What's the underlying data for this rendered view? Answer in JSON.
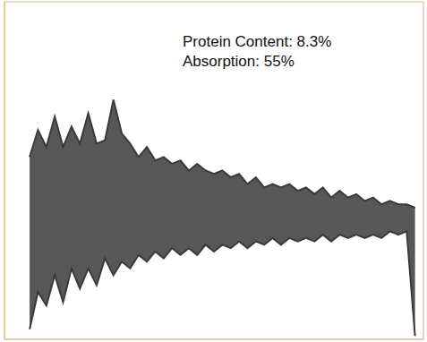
{
  "chart_data": {
    "type": "area",
    "annotations": [
      "Protein Content: 8.3%",
      "Absorption: 55%"
    ],
    "x": [
      0.6,
      0.8,
      1.0,
      1.2,
      1.4,
      1.6,
      1.8,
      2.0,
      2.2,
      2.4,
      2.6,
      2.8,
      3.0,
      3.2,
      3.4,
      3.6,
      3.8,
      4.0,
      4.2,
      4.4,
      4.6,
      4.8,
      5.0,
      5.2,
      5.4,
      5.6,
      5.8,
      6.0,
      6.2,
      6.4,
      6.6,
      6.8,
      7.0,
      7.2,
      7.4,
      7.6,
      7.8,
      8.0,
      8.2,
      8.4,
      8.6,
      8.8,
      9.0,
      9.2,
      9.4,
      9.6,
      9.8
    ],
    "series": [
      {
        "color": "#3a3a3a",
        "values": [
          54,
          62,
          57,
          66,
          57,
          63,
          58,
          67,
          58,
          59,
          71,
          61,
          58,
          54,
          57,
          53,
          54,
          52,
          53,
          50,
          52,
          50,
          49,
          50,
          48,
          49,
          46,
          48,
          45,
          46,
          45,
          46,
          44,
          45,
          43,
          45,
          42,
          44,
          42,
          43,
          41,
          42,
          40,
          41,
          40,
          40,
          39
        ]
      },
      {
        "color": "#3a3a3a",
        "values": [
          3,
          14,
          10,
          19,
          11,
          21,
          15,
          21,
          16,
          24,
          19,
          23,
          21,
          25,
          23,
          26,
          24,
          27,
          25,
          27,
          25,
          28,
          26,
          28,
          27,
          29,
          27,
          29,
          28,
          30,
          28,
          30,
          29,
          30,
          29,
          31,
          29,
          31,
          30,
          31,
          30,
          31,
          30,
          32,
          31,
          32,
          1
        ]
      }
    ],
    "xlim": [
      0,
      10
    ],
    "xticks": [
      0,
      1,
      2,
      3,
      4,
      5,
      6,
      7,
      8,
      9,
      10
    ],
    "ylim": [
      0,
      100
    ],
    "yticks": [
      0,
      10,
      20,
      30,
      40,
      50,
      60,
      70,
      80,
      90,
      100
    ],
    "grid": true,
    "tick_labels": false
  }
}
